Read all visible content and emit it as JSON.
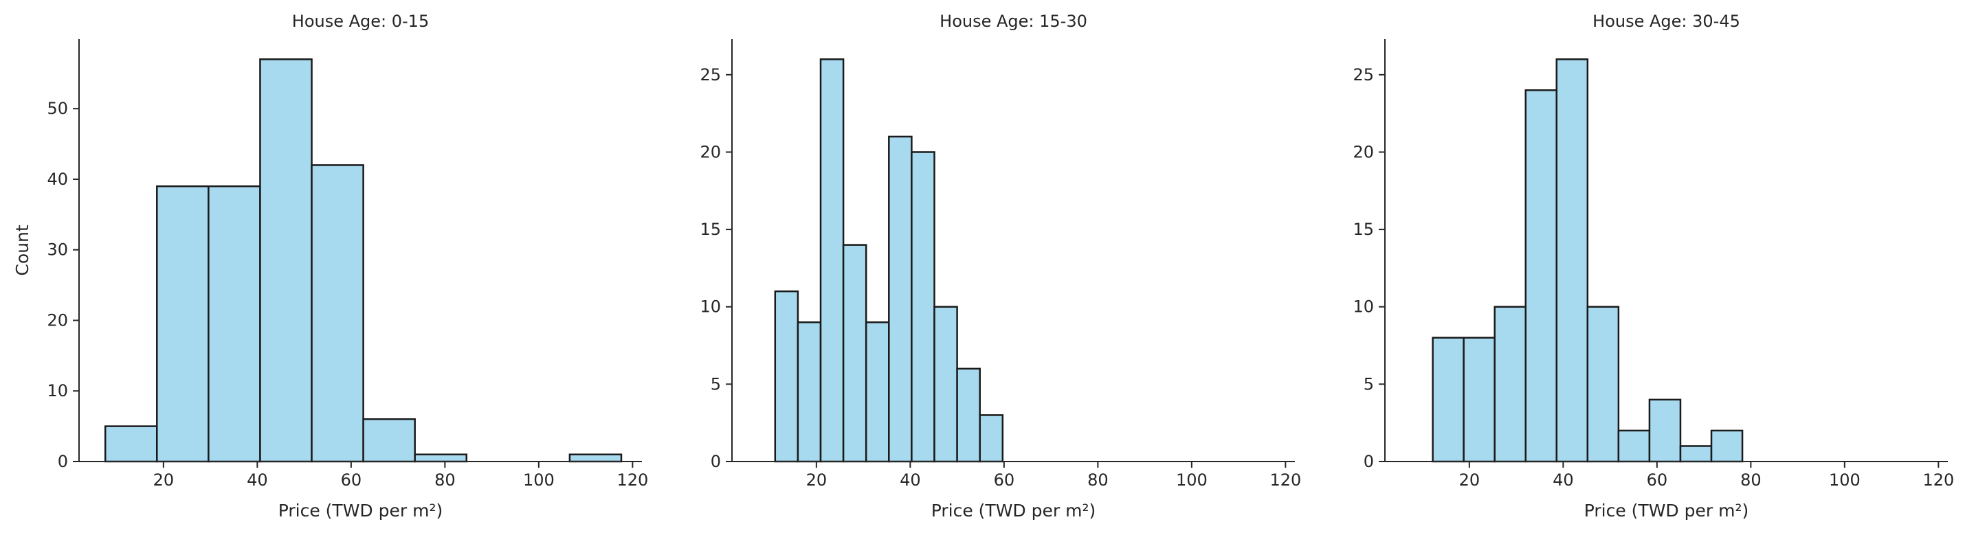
{
  "figure": {
    "bar_color": "#a8daef",
    "edge_color": "#1a1a1a",
    "axis_color": "#262626"
  },
  "chart_data": [
    {
      "type": "bar",
      "title": "House Age: 0-15",
      "xlabel": "Price (TWD per m²)",
      "ylabel": "Count",
      "xlim": [
        2,
        122
      ],
      "ylim": [
        0,
        59.85
      ],
      "xticks": [
        20,
        40,
        60,
        80,
        100,
        120
      ],
      "yticks": [
        0,
        10,
        20,
        30,
        40,
        50
      ],
      "bin_edges": [
        7.6,
        18.6,
        29.6,
        40.6,
        51.6,
        62.6,
        73.6,
        84.6,
        95.6,
        106.6,
        117.6
      ],
      "values": [
        5,
        39,
        39,
        57,
        42,
        6,
        1,
        0,
        0,
        1
      ],
      "grid": false,
      "legend": "none"
    },
    {
      "type": "bar",
      "title": "House Age: 15-30",
      "xlabel": "Price (TWD per m²)",
      "ylabel": "",
      "xlim": [
        2,
        122
      ],
      "ylim": [
        0,
        27.3
      ],
      "xticks": [
        20,
        40,
        60,
        80,
        100,
        120
      ],
      "yticks": [
        0,
        5,
        10,
        15,
        20,
        25
      ],
      "bin_edges": [
        11.2,
        16.05,
        20.9,
        25.75,
        30.6,
        35.45,
        40.3,
        45.15,
        50.0,
        54.85,
        59.7
      ],
      "values": [
        11,
        9,
        26,
        14,
        9,
        21,
        20,
        10,
        6,
        3
      ],
      "grid": false,
      "legend": "none"
    },
    {
      "type": "bar",
      "title": "House Age: 30-45",
      "xlabel": "Price (TWD per m²)",
      "ylabel": "",
      "xlim": [
        2,
        122
      ],
      "ylim": [
        0,
        27.3
      ],
      "xticks": [
        20,
        40,
        60,
        80,
        100,
        120
      ],
      "yticks": [
        0,
        5,
        10,
        15,
        20,
        25
      ],
      "bin_edges": [
        12.2,
        18.8,
        25.4,
        32.0,
        38.6,
        45.2,
        51.8,
        58.4,
        65.0,
        71.6,
        78.2
      ],
      "values": [
        8,
        8,
        10,
        24,
        26,
        10,
        2,
        4,
        1,
        2
      ],
      "grid": false,
      "legend": "none"
    }
  ]
}
